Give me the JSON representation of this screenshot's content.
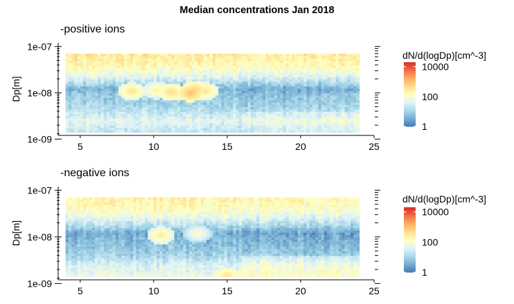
{
  "chart_data": {
    "title": "Median concentrations Jan 2018",
    "panels": [
      {
        "type": "heatmap",
        "subtitle": "-positive ions",
        "ylabel": "Dp[m]",
        "xlabel": "",
        "xlim": [
          3.5,
          25
        ],
        "x_ticks": [
          "5",
          "10",
          "15",
          "20",
          "25"
        ],
        "x_tick_values": [
          5,
          10,
          15,
          20,
          25
        ],
        "y_scale": "log",
        "ylim": [
          1.2e-09,
          1.2e-07
        ],
        "y_ticks": [
          "1e-09",
          "1e-08",
          "1e-07"
        ],
        "y_tick_values": [
          1e-09,
          1e-08,
          1e-07
        ],
        "data_x_range": [
          4,
          24
        ],
        "data_y_range": [
          1.4e-09,
          7e-08
        ],
        "color_scale": {
          "title": "dN/d(logDp)[cm^-3]",
          "scale": "log",
          "range": [
            1,
            20000
          ],
          "ticks": [
            "10000",
            "100",
            "1"
          ],
          "tick_values": [
            10000,
            100,
            1
          ],
          "colors": [
            "#4575b4",
            "#74add1",
            "#abd9e9",
            "#e0f3f8",
            "#ffffbf",
            "#fee090",
            "#fdae61",
            "#f46d43",
            "#d73027"
          ]
        },
        "profile_log10": [
          {
            "dp": 1.5e-09,
            "value": 1.3
          },
          {
            "dp": 2.5e-09,
            "value": 1.7
          },
          {
            "dp": 4e-09,
            "value": 1.25
          },
          {
            "dp": 6e-09,
            "value": 1.0
          },
          {
            "dp": 9e-09,
            "value": 0.9
          },
          {
            "dp": 1.2e-08,
            "value": 0.6
          },
          {
            "dp": 1.6e-08,
            "value": 1.1
          },
          {
            "dp": 2.5e-08,
            "value": 1.8
          },
          {
            "dp": 4e-08,
            "value": 2.3
          },
          {
            "dp": 7e-08,
            "value": 2.5
          }
        ],
        "hotspots": [
          {
            "x": 8.5,
            "dp": 1.1e-08,
            "value_log10": 2.7
          },
          {
            "x": 10.2,
            "dp": 1.15e-08,
            "value_log10": 2.5
          },
          {
            "x": 11.2,
            "dp": 1.05e-08,
            "value_log10": 2.8
          },
          {
            "x": 12.5,
            "dp": 1e-08,
            "value_log10": 3.1
          },
          {
            "x": 12.8,
            "dp": 1.2e-08,
            "value_log10": 2.9
          },
          {
            "x": 13.5,
            "dp": 1.1e-08,
            "value_log10": 2.7
          }
        ]
      },
      {
        "type": "heatmap",
        "subtitle": "-negative ions",
        "ylabel": "Dp[m]",
        "xlabel": "",
        "xlim": [
          3.5,
          25
        ],
        "x_ticks": [
          "5",
          "10",
          "15",
          "20",
          "25"
        ],
        "x_tick_values": [
          5,
          10,
          15,
          20,
          25
        ],
        "y_scale": "log",
        "ylim": [
          1.2e-09,
          1.2e-07
        ],
        "y_ticks": [
          "1e-09",
          "1e-08",
          "1e-07"
        ],
        "y_tick_values": [
          1e-09,
          1e-08,
          1e-07
        ],
        "data_x_range": [
          4,
          24
        ],
        "data_y_range": [
          1.4e-09,
          7e-08
        ],
        "color_scale": {
          "title": "dN/d(logDp)[cm^-3]",
          "scale": "log",
          "range": [
            1,
            20000
          ],
          "ticks": [
            "10000",
            "100",
            "1"
          ],
          "tick_values": [
            10000,
            100,
            1
          ],
          "colors": [
            "#4575b4",
            "#74add1",
            "#abd9e9",
            "#e0f3f8",
            "#ffffbf",
            "#fee090",
            "#fdae61",
            "#f46d43",
            "#d73027"
          ]
        },
        "profile_log10": [
          {
            "dp": 1.5e-09,
            "value": 1.8
          },
          {
            "dp": 2.5e-09,
            "value": 1.6
          },
          {
            "dp": 4e-09,
            "value": 1.05
          },
          {
            "dp": 6e-09,
            "value": 0.85
          },
          {
            "dp": 9e-09,
            "value": 0.7
          },
          {
            "dp": 1.2e-08,
            "value": 0.55
          },
          {
            "dp": 1.6e-08,
            "value": 1.0
          },
          {
            "dp": 2.5e-08,
            "value": 1.7
          },
          {
            "dp": 4e-08,
            "value": 2.2
          },
          {
            "dp": 7e-08,
            "value": 2.4
          }
        ],
        "hotspots": [
          {
            "x": 10.5,
            "dp": 1.1e-08,
            "value_log10": 2.6
          },
          {
            "x": 13.0,
            "dp": 1.2e-08,
            "value_log10": 2.2
          },
          {
            "x": 15.0,
            "dp": 1.5e-09,
            "value_log10": 2.7
          },
          {
            "x": 19.5,
            "dp": 6e-08,
            "value_log10": 2.6
          }
        ]
      }
    ]
  }
}
